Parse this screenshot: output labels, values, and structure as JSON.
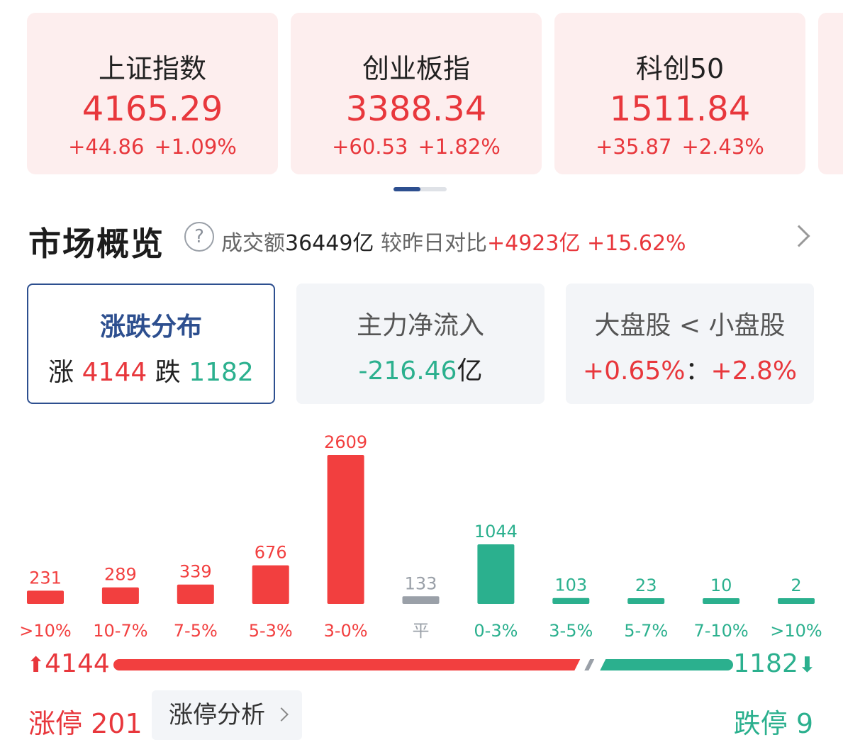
{
  "indices": [
    {
      "name": "上证指数",
      "value": "4165.29",
      "change": "+44.86",
      "pct": "+1.09%"
    },
    {
      "name": "创业板指",
      "value": "3388.34",
      "change": "+60.53",
      "pct": "+1.82%"
    },
    {
      "name": "科创50",
      "value": "1511.84",
      "change": "+35.87",
      "pct": "+2.43%"
    }
  ],
  "overview": {
    "title": "市场概览",
    "help": "?",
    "turnover_label": "成交额",
    "turnover_value": "36449亿",
    "compare_label": "较昨日对比",
    "compare_value": "+4923亿",
    "compare_pct": "+15.62%"
  },
  "tabs": {
    "distribution": {
      "title": "涨跌分布",
      "up_label": "涨",
      "up_value": "4144",
      "down_label": "跌",
      "down_value": "1182"
    },
    "main_flow": {
      "title": "主力净流入",
      "value": "-216.46",
      "unit": "亿"
    },
    "cap_compare": {
      "title": "大盘股 < 小盘股",
      "large": "+0.65%",
      "sep": "：",
      "small": "+2.8%"
    }
  },
  "chart_data": {
    "type": "bar",
    "categories": [
      ">10%",
      "10-7%",
      "7-5%",
      "5-3%",
      "3-0%",
      "平",
      "0-3%",
      "3-5%",
      "5-7%",
      "7-10%",
      ">10%"
    ],
    "values": [
      231,
      289,
      339,
      676,
      2609,
      133,
      1044,
      103,
      23,
      10,
      2
    ],
    "bar_kinds": [
      "up",
      "up",
      "up",
      "up",
      "up",
      "flat",
      "down",
      "down",
      "down",
      "down",
      "down"
    ],
    "colors": {
      "up": "#f23f3f",
      "flat": "#9aa0a8",
      "down": "#2bb08e"
    }
  },
  "ratio": {
    "up_count": "4144",
    "down_count": "1182",
    "up_arrow": "⬆",
    "down_arrow": "⬇",
    "up_color": "#f23f3f",
    "down_color": "#2bb08e",
    "flat_color": "#9aa0a8"
  },
  "limits": {
    "up_label": "涨停",
    "up_value": "201",
    "analysis_label": "涨停分析",
    "down_label": "跌停",
    "down_value": "9"
  }
}
